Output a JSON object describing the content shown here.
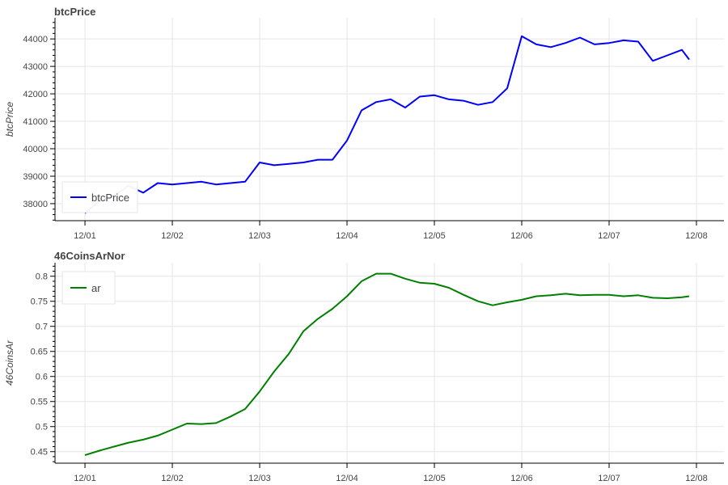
{
  "chart_data": [
    {
      "type": "line",
      "title": "btcPrice",
      "xlabel": "",
      "ylabel": "btcPrice",
      "x_ticks": [
        "12/01",
        "12/02",
        "12/03",
        "12/04",
        "12/05",
        "12/06",
        "12/07",
        "12/08"
      ],
      "y_ticks": [
        38000,
        39000,
        40000,
        41000,
        42000,
        43000,
        44000
      ],
      "ylim": [
        37380,
        44770
      ],
      "grid": true,
      "legend": "bottom-left",
      "series": [
        {
          "name": "btcPrice",
          "color": "#0000ff",
          "x": [
            "12/01 00:00",
            "12/01 04:00",
            "12/01 08:00",
            "12/01 12:00",
            "12/01 16:00",
            "12/01 20:00",
            "12/02 00:00",
            "12/02 04:00",
            "12/02 08:00",
            "12/02 12:00",
            "12/02 16:00",
            "12/02 20:00",
            "12/03 00:00",
            "12/03 04:00",
            "12/03 08:00",
            "12/03 12:00",
            "12/03 16:00",
            "12/03 20:00",
            "12/04 00:00",
            "12/04 04:00",
            "12/04 08:00",
            "12/04 12:00",
            "12/04 16:00",
            "12/04 20:00",
            "12/05 00:00",
            "12/05 04:00",
            "12/05 08:00",
            "12/05 12:00",
            "12/05 16:00",
            "12/05 20:00",
            "12/06 00:00",
            "12/06 04:00",
            "12/06 08:00",
            "12/06 12:00",
            "12/06 16:00",
            "12/06 20:00",
            "12/07 00:00",
            "12/07 04:00",
            "12/07 08:00",
            "12/07 12:00",
            "12/07 16:00",
            "12/07 20:00",
            "12/07 22:00"
          ],
          "y": [
            37650,
            38100,
            38300,
            38650,
            38400,
            38750,
            38700,
            38750,
            38800,
            38700,
            38750,
            38800,
            39500,
            39400,
            39450,
            39500,
            39600,
            39600,
            40300,
            41400,
            41700,
            41800,
            41500,
            41900,
            41950,
            41800,
            41750,
            41600,
            41700,
            42200,
            44100,
            43800,
            43700,
            43850,
            44050,
            43800,
            43850,
            43950,
            43900,
            43200,
            43400,
            43600,
            43250
          ]
        }
      ]
    },
    {
      "type": "line",
      "title": "46CoinsArNor",
      "xlabel": "",
      "ylabel": "46CoinsAr",
      "x_ticks": [
        "12/01",
        "12/02",
        "12/03",
        "12/04",
        "12/05",
        "12/06",
        "12/07",
        "12/08"
      ],
      "y_ticks": [
        0.45,
        0.5,
        0.55,
        0.6,
        0.65,
        0.7,
        0.75,
        0.8
      ],
      "ylim": [
        0.427,
        0.827
      ],
      "grid": true,
      "legend": "top-left",
      "series": [
        {
          "name": "ar",
          "color": "#008000",
          "x": [
            "12/01 00:00",
            "12/01 04:00",
            "12/01 08:00",
            "12/01 12:00",
            "12/01 16:00",
            "12/01 20:00",
            "12/02 00:00",
            "12/02 04:00",
            "12/02 08:00",
            "12/02 12:00",
            "12/02 16:00",
            "12/02 20:00",
            "12/03 00:00",
            "12/03 04:00",
            "12/03 08:00",
            "12/03 12:00",
            "12/03 16:00",
            "12/03 20:00",
            "12/04 00:00",
            "12/04 04:00",
            "12/04 08:00",
            "12/04 12:00",
            "12/04 16:00",
            "12/04 20:00",
            "12/05 00:00",
            "12/05 04:00",
            "12/05 08:00",
            "12/05 12:00",
            "12/05 16:00",
            "12/05 20:00",
            "12/06 00:00",
            "12/06 04:00",
            "12/06 08:00",
            "12/06 12:00",
            "12/06 16:00",
            "12/06 20:00",
            "12/07 00:00",
            "12/07 04:00",
            "12/07 08:00",
            "12/07 12:00",
            "12/07 16:00",
            "12/07 20:00",
            "12/07 22:00"
          ],
          "y": [
            0.443,
            0.452,
            0.46,
            0.468,
            0.474,
            0.482,
            0.494,
            0.506,
            0.505,
            0.507,
            0.52,
            0.535,
            0.57,
            0.61,
            0.645,
            0.69,
            0.715,
            0.735,
            0.76,
            0.79,
            0.805,
            0.805,
            0.795,
            0.787,
            0.785,
            0.777,
            0.763,
            0.75,
            0.742,
            0.748,
            0.753,
            0.76,
            0.762,
            0.765,
            0.762,
            0.763,
            0.763,
            0.76,
            0.762,
            0.757,
            0.756,
            0.758,
            0.76
          ]
        }
      ]
    }
  ]
}
